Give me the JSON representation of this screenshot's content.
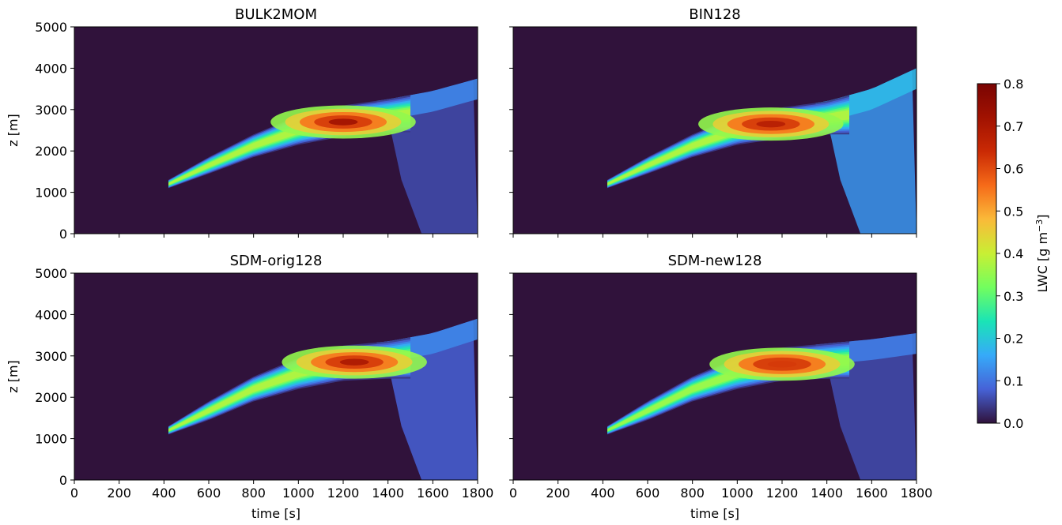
{
  "chart_data": [
    {
      "type": "heatmap",
      "title": "BULK2MOM",
      "xlabel": "",
      "ylabel": "z [m]",
      "xlim": [
        0,
        1800
      ],
      "ylim": [
        0,
        5000
      ],
      "x_ticks": [
        0,
        200,
        400,
        600,
        800,
        1000,
        1200,
        1400,
        1600,
        1800
      ],
      "y_ticks": [
        0,
        1000,
        2000,
        3000,
        4000,
        5000
      ],
      "x_ticklabels_shown": false,
      "y_ticklabels_shown": true,
      "field": {
        "peak_lwc": 0.72,
        "peak": [
          1200,
          2700
        ],
        "cloud_base": [
          [
            420,
            1100
          ],
          [
            600,
            1450
          ],
          [
            800,
            1850
          ],
          [
            1000,
            2150
          ],
          [
            1200,
            2350
          ],
          [
            1400,
            2450
          ]
        ],
        "cloud_top": [
          [
            420,
            1300
          ],
          [
            600,
            1850
          ],
          [
            800,
            2400
          ],
          [
            1000,
            2850
          ],
          [
            1200,
            3100
          ],
          [
            1400,
            3250
          ],
          [
            1600,
            3450
          ],
          [
            1800,
            3750
          ]
        ],
        "core_lwc": [
          0.08,
          0.22,
          0.38,
          0.55,
          0.72,
          0.45
        ],
        "downdraft_lwc": 0.06,
        "outflow_lwc": 0.12
      }
    },
    {
      "type": "heatmap",
      "title": "BIN128",
      "xlabel": "",
      "ylabel": "",
      "xlim": [
        0,
        1800
      ],
      "ylim": [
        0,
        5000
      ],
      "x_ticks": [
        0,
        200,
        400,
        600,
        800,
        1000,
        1200,
        1400,
        1600,
        1800
      ],
      "y_ticks": [
        0,
        1000,
        2000,
        3000,
        4000,
        5000
      ],
      "x_ticklabels_shown": false,
      "y_ticklabels_shown": false,
      "field": {
        "peak_lwc": 0.68,
        "peak": [
          1150,
          2650
        ],
        "cloud_base": [
          [
            420,
            1100
          ],
          [
            600,
            1450
          ],
          [
            800,
            1850
          ],
          [
            1000,
            2150
          ],
          [
            1200,
            2300
          ],
          [
            1400,
            2400
          ]
        ],
        "cloud_top": [
          [
            420,
            1300
          ],
          [
            600,
            1850
          ],
          [
            800,
            2400
          ],
          [
            1000,
            2850
          ],
          [
            1200,
            3050
          ],
          [
            1400,
            3200
          ],
          [
            1600,
            3500
          ],
          [
            1800,
            4000
          ]
        ],
        "core_lwc": [
          0.08,
          0.22,
          0.38,
          0.52,
          0.68,
          0.4
        ],
        "downdraft_lwc": 0.14,
        "outflow_lwc": 0.18
      }
    },
    {
      "type": "heatmap",
      "title": "SDM-orig128",
      "xlabel": "time [s]",
      "ylabel": "z [m]",
      "xlim": [
        0,
        1800
      ],
      "ylim": [
        0,
        5000
      ],
      "x_ticks": [
        0,
        200,
        400,
        600,
        800,
        1000,
        1200,
        1400,
        1600,
        1800
      ],
      "y_ticks": [
        0,
        1000,
        2000,
        3000,
        4000,
        5000
      ],
      "x_ticklabels_shown": true,
      "y_ticklabels_shown": true,
      "field": {
        "peak_lwc": 0.7,
        "peak": [
          1250,
          2850
        ],
        "cloud_base": [
          [
            420,
            1100
          ],
          [
            600,
            1450
          ],
          [
            800,
            1900
          ],
          [
            1000,
            2200
          ],
          [
            1200,
            2400
          ],
          [
            1400,
            2450
          ]
        ],
        "cloud_top": [
          [
            420,
            1300
          ],
          [
            600,
            1900
          ],
          [
            800,
            2500
          ],
          [
            1000,
            2950
          ],
          [
            1200,
            3250
          ],
          [
            1400,
            3350
          ],
          [
            1600,
            3550
          ],
          [
            1800,
            3900
          ]
        ],
        "core_lwc": [
          0.08,
          0.22,
          0.38,
          0.55,
          0.7,
          0.5
        ],
        "downdraft_lwc": 0.08,
        "outflow_lwc": 0.12
      }
    },
    {
      "type": "heatmap",
      "title": "SDM-new128",
      "xlabel": "time [s]",
      "ylabel": "",
      "xlim": [
        0,
        1800
      ],
      "ylim": [
        0,
        5000
      ],
      "x_ticks": [
        0,
        200,
        400,
        600,
        800,
        1000,
        1200,
        1400,
        1600,
        1800
      ],
      "y_ticks": [
        0,
        1000,
        2000,
        3000,
        4000,
        5000
      ],
      "x_ticklabels_shown": true,
      "y_ticklabels_shown": false,
      "field": {
        "peak_lwc": 0.62,
        "peak": [
          1200,
          2800
        ],
        "cloud_base": [
          [
            420,
            1100
          ],
          [
            600,
            1450
          ],
          [
            800,
            1900
          ],
          [
            1000,
            2200
          ],
          [
            1200,
            2400
          ],
          [
            1400,
            2450
          ]
        ],
        "cloud_top": [
          [
            420,
            1300
          ],
          [
            600,
            1900
          ],
          [
            800,
            2500
          ],
          [
            1000,
            2950
          ],
          [
            1200,
            3200
          ],
          [
            1400,
            3300
          ],
          [
            1600,
            3400
          ],
          [
            1800,
            3550
          ]
        ],
        "core_lwc": [
          0.08,
          0.22,
          0.36,
          0.5,
          0.62,
          0.48
        ],
        "downdraft_lwc": 0.06,
        "outflow_lwc": 0.11
      }
    }
  ],
  "colorbar": {
    "label_base": "LWC [g m",
    "label_exp": "−3",
    "label_close": "]",
    "range": [
      0.0,
      0.8
    ],
    "ticks": [
      "0.0",
      "0.1",
      "0.2",
      "0.3",
      "0.4",
      "0.5",
      "0.6",
      "0.7",
      "0.8"
    ],
    "colormap": "turbo"
  },
  "colors": {
    "background": "#30123b",
    "low": "#4662d7",
    "mid": "#1ae4b6",
    "high_mid": "#faba39",
    "high": "#c42503",
    "top": "#7a0403"
  }
}
